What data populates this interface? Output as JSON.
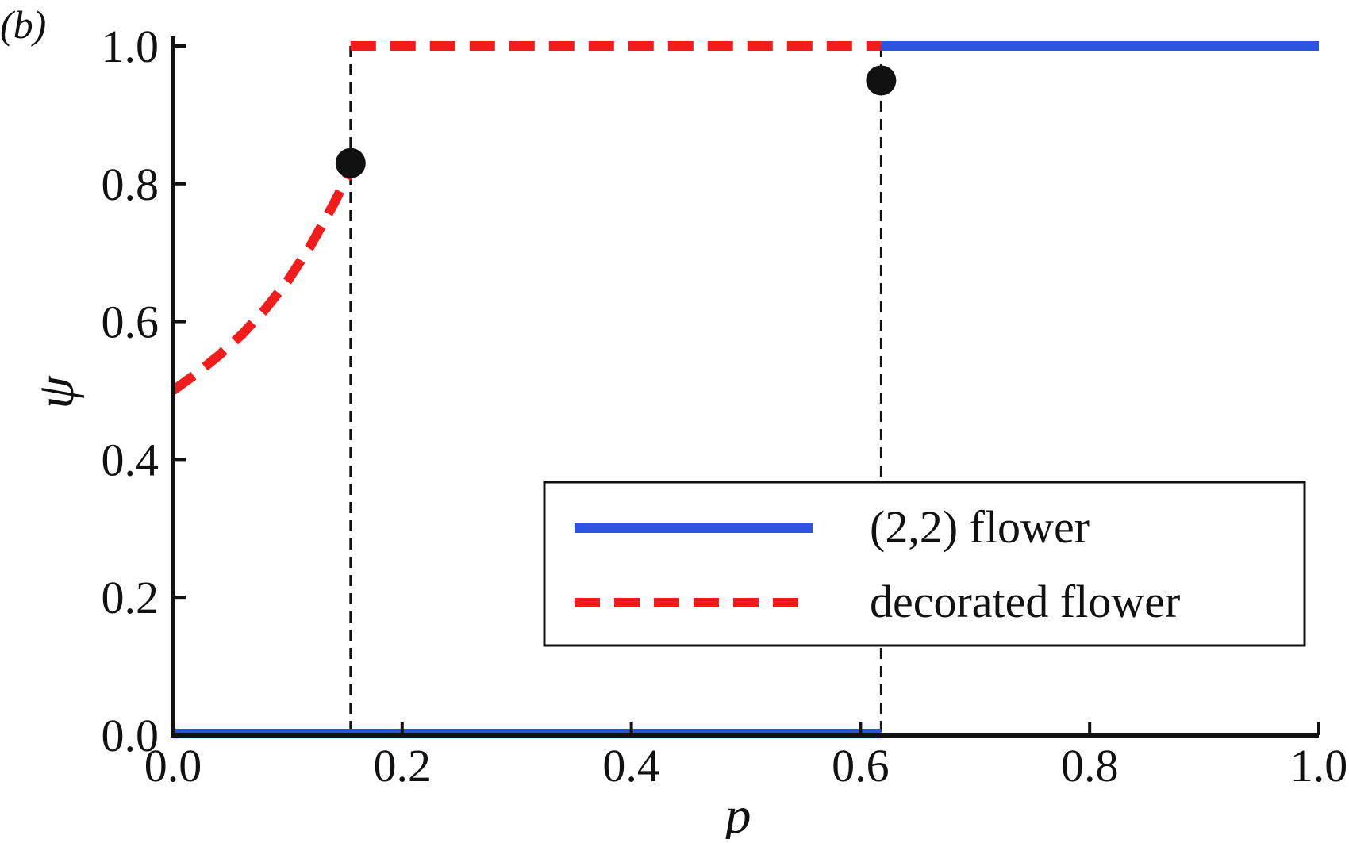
{
  "chart_data": {
    "type": "line",
    "panel_label": "(b)",
    "xlabel": "p",
    "ylabel": "ψ",
    "xlim": [
      0.0,
      1.0
    ],
    "ylim": [
      0.0,
      1.0
    ],
    "x_ticks": [
      0.0,
      0.2,
      0.4,
      0.6,
      0.8,
      1.0
    ],
    "x_tick_labels": [
      "0.0",
      "0.2",
      "0.4",
      "0.6",
      "0.8",
      "1.0"
    ],
    "y_ticks": [
      0.0,
      0.2,
      0.4,
      0.6,
      0.8,
      1.0
    ],
    "y_tick_labels": [
      "0.0",
      "0.2",
      "0.4",
      "0.6",
      "0.8",
      "1.0"
    ],
    "grid": false,
    "legend_position": "bottom-right",
    "series": [
      {
        "name": "(2,2) flower",
        "style": "solid",
        "color": "#2b55e0",
        "segments": [
          [
            [
              0.0,
              0.0
            ],
            [
              0.618,
              0.0
            ]
          ],
          [
            [
              0.618,
              1.0
            ],
            [
              1.0,
              1.0
            ]
          ]
        ]
      },
      {
        "name": "decorated flower",
        "style": "dashed",
        "color": "#f21c1c",
        "segments": [
          [
            [
              0.0,
              0.5
            ],
            [
              0.02,
              0.524
            ],
            [
              0.04,
              0.551
            ],
            [
              0.06,
              0.581
            ],
            [
              0.08,
              0.617
            ],
            [
              0.1,
              0.659
            ],
            [
              0.12,
              0.71
            ],
            [
              0.14,
              0.77
            ],
            [
              0.155,
              0.82
            ]
          ],
          [
            [
              0.155,
              1.0
            ],
            [
              0.618,
              1.0
            ]
          ]
        ]
      }
    ],
    "markers": [
      {
        "x": 0.155,
        "y": 0.83
      },
      {
        "x": 0.618,
        "y": 0.95
      }
    ],
    "vertical_lines": [
      0.155,
      0.618
    ]
  }
}
